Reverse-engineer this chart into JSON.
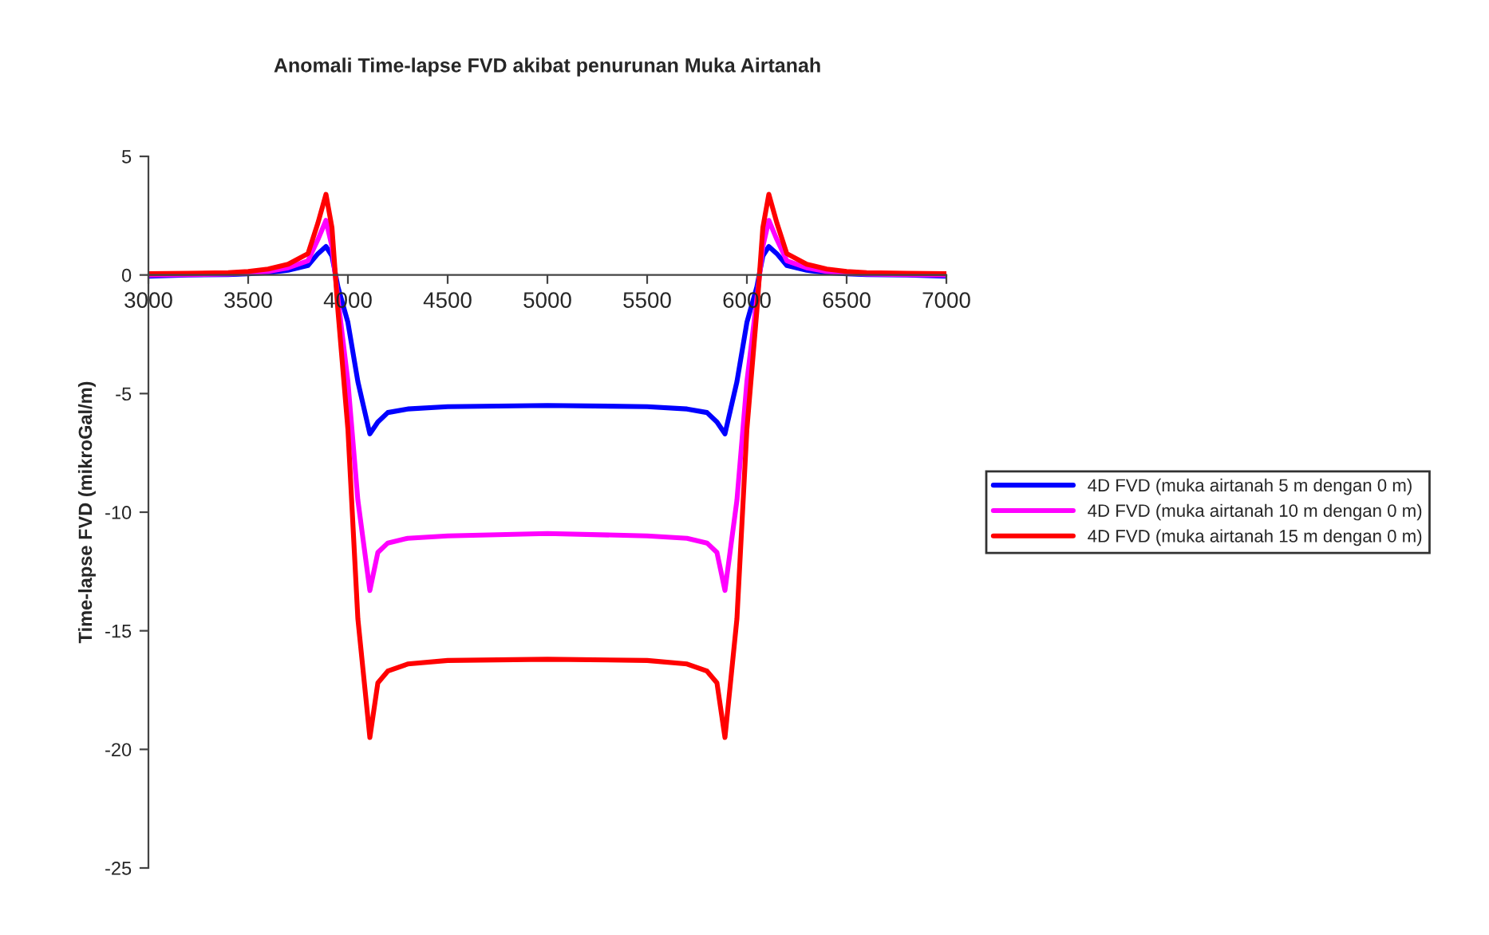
{
  "chart_data": {
    "type": "line",
    "title": "Anomali Time-lapse FVD akibat penurunan Muka Airtanah",
    "ylabel": "Time-lapse FVD (mikroGal/m)",
    "x": [
      3000,
      3200,
      3400,
      3500,
      3600,
      3700,
      3800,
      3850,
      3890,
      3920,
      3950,
      4000,
      4050,
      4110,
      4150,
      4200,
      4300,
      4500,
      5000,
      5500,
      5700,
      5800,
      5850,
      5890,
      5950,
      6000,
      6050,
      6080,
      6110,
      6150,
      6200,
      6300,
      6400,
      6500,
      6600,
      6800,
      7000
    ],
    "series": [
      {
        "name": "4D FVD (muka airtanah 5 m dengan 0 m)",
        "color": "#0000ff",
        "values": [
          -0.05,
          0,
          0.02,
          0.05,
          0.1,
          0.2,
          0.4,
          0.9,
          1.2,
          0.8,
          -0.5,
          -2.0,
          -4.5,
          -6.7,
          -6.2,
          -5.8,
          -5.65,
          -5.55,
          -5.5,
          -5.55,
          -5.65,
          -5.8,
          -6.2,
          -6.7,
          -4.5,
          -2.0,
          -0.5,
          0.8,
          1.2,
          0.9,
          0.4,
          0.2,
          0.1,
          0.05,
          0.02,
          0,
          -0.05
        ]
      },
      {
        "name": "4D FVD (muka airtanah 10 m dengan 0 m)",
        "color": "#ff00ff",
        "values": [
          0,
          0.02,
          0.04,
          0.08,
          0.15,
          0.3,
          0.6,
          1.5,
          2.3,
          1.2,
          -1.0,
          -4.5,
          -9.5,
          -13.3,
          -11.7,
          -11.3,
          -11.1,
          -11.0,
          -10.9,
          -11.0,
          -11.1,
          -11.3,
          -11.7,
          -13.3,
          -9.5,
          -4.5,
          -1.0,
          1.2,
          2.3,
          1.5,
          0.6,
          0.3,
          0.15,
          0.08,
          0.04,
          0.02,
          0
        ]
      },
      {
        "name": "4D FVD (muka airtanah 15 m dengan 0 m)",
        "color": "#ff0000",
        "values": [
          0.05,
          0.07,
          0.1,
          0.15,
          0.25,
          0.45,
          0.9,
          2.2,
          3.4,
          2.0,
          -1.5,
          -6.5,
          -14.5,
          -19.5,
          -17.2,
          -16.7,
          -16.4,
          -16.25,
          -16.2,
          -16.25,
          -16.4,
          -16.7,
          -17.2,
          -19.5,
          -14.5,
          -6.5,
          -1.5,
          2.0,
          3.4,
          2.2,
          0.9,
          0.45,
          0.25,
          0.15,
          0.1,
          0.07,
          0.05
        ]
      }
    ],
    "xlim": [
      3000,
      7000
    ],
    "xticks": [
      3000,
      3500,
      4000,
      4500,
      5000,
      5500,
      6000,
      6500,
      7000
    ],
    "ylim": [
      -25,
      5
    ],
    "yticks": [
      -25,
      -20,
      -15,
      -10,
      -5,
      0,
      5
    ],
    "grid": false,
    "legend": "right",
    "marker": "none",
    "line_style": "solid"
  }
}
